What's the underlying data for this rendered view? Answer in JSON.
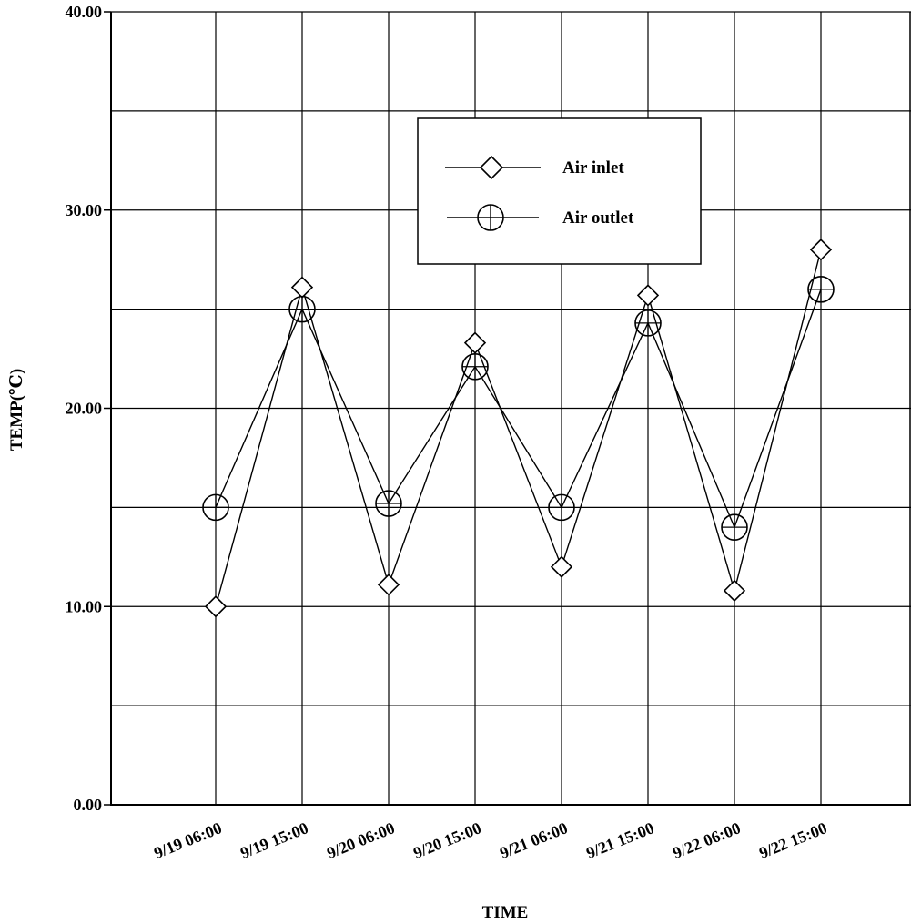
{
  "chart_data": {
    "type": "line",
    "title": "",
    "xlabel": "TIME",
    "ylabel": "TEMP(℃)",
    "categories": [
      "9/19 06:00",
      "9/19 15:00",
      "9/20 06:00",
      "9/20 15:00",
      "9/21 06:00",
      "9/21 15:00",
      "9/22 06:00",
      "9/22 15:00"
    ],
    "ylim": [
      0,
      40
    ],
    "y_ticks": [
      "0.00",
      "10.00",
      "20.00",
      "30.00",
      "40.00"
    ],
    "grid": true,
    "legend_position": "top-center",
    "series": [
      {
        "name": "Air inlet",
        "marker": "diamond",
        "values": [
          10.0,
          26.1,
          11.1,
          23.3,
          12.0,
          25.7,
          10.8,
          28.0
        ]
      },
      {
        "name": "Air outlet",
        "marker": "circle-cross",
        "values": [
          15.0,
          25.0,
          15.2,
          22.1,
          15.0,
          24.3,
          14.0,
          26.0
        ]
      }
    ]
  }
}
